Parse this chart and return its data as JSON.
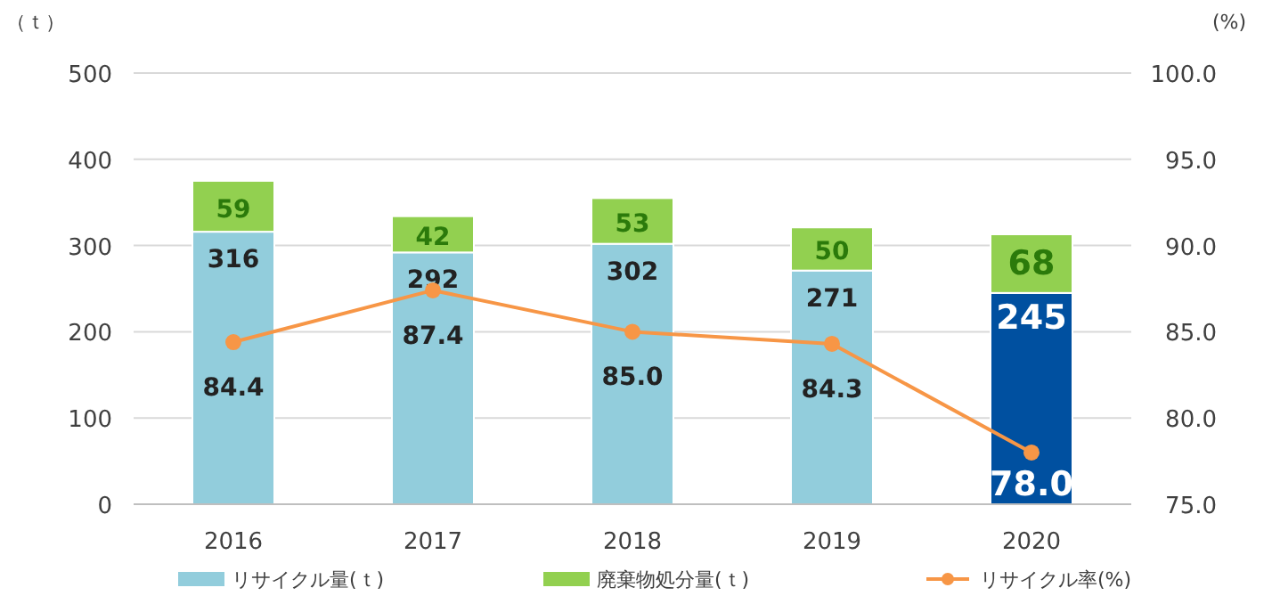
{
  "chart_data": {
    "type": "bar",
    "stacked": true,
    "categories": [
      "2016",
      "2017",
      "2018",
      "2019",
      "2020"
    ],
    "ylabel": "（ｔ）",
    "y2label": "(%)",
    "ylim": [
      0,
      500
    ],
    "yticks": [
      0,
      100,
      200,
      300,
      400,
      500
    ],
    "y2lim": [
      75,
      100
    ],
    "y2ticks": [
      {
        "value": 75,
        "label": "75.0"
      },
      {
        "value": 80,
        "label": "80.0"
      },
      {
        "value": 85,
        "label": "85.0"
      },
      {
        "value": 90,
        "label": "90.0"
      },
      {
        "value": 95,
        "label": "95.0"
      },
      {
        "value": 100,
        "label": "100.0"
      }
    ],
    "grid": "y",
    "legend": "bottom",
    "data_labels": true,
    "series": [
      {
        "name": "リサイクル量(ｔ)",
        "colors": [
          "#92cddc",
          "#92cddc",
          "#92cddc",
          "#92cddc",
          "#0050a0"
        ],
        "values": [
          316,
          292,
          302,
          271,
          245
        ]
      },
      {
        "name": "廃棄物処分量(ｔ)",
        "color": "#92d050",
        "values": [
          59,
          42,
          53,
          50,
          68
        ]
      },
      {
        "name": "リサイクル率(%)",
        "type": "line",
        "axis": "y2",
        "color": "#f79646",
        "marker": "circle",
        "values": [
          84.4,
          87.4,
          85.0,
          84.3,
          78.0
        ],
        "value_labels": [
          "84.4",
          "87.4",
          "85.0",
          "84.3",
          "78.0"
        ]
      }
    ]
  }
}
